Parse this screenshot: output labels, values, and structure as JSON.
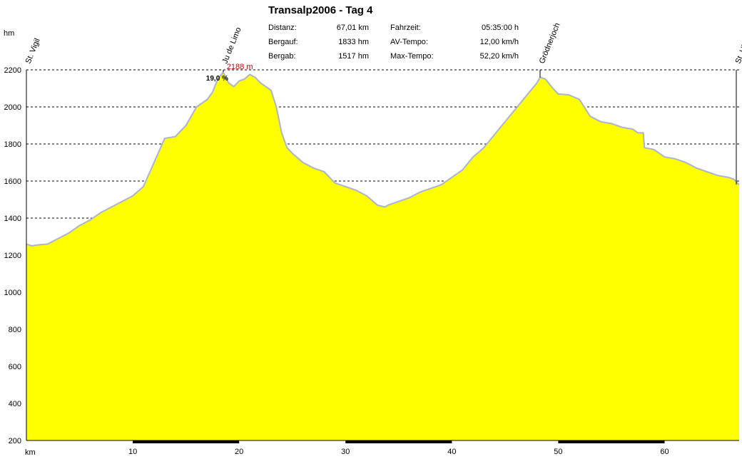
{
  "title": "Transalp2006 - Tag 4",
  "stats": [
    {
      "label": "Distanz:",
      "value": "67,01 km"
    },
    {
      "label": "Bergauf:",
      "value": "1833 hm"
    },
    {
      "label": "Bergab:",
      "value": "1517 hm"
    },
    {
      "label": "Fahrzeit:",
      "value": "05:35:00 h"
    },
    {
      "label": "AV-Tempo:",
      "value": "12,00 km/h"
    },
    {
      "label": "Max-Tempo:",
      "value": "52,20 km/h"
    }
  ],
  "colors": {
    "fill": "#ffff00",
    "line": "#aab4d0",
    "grid": "#000000",
    "maxlabel": "#cc0000"
  },
  "chart_data": {
    "type": "area",
    "xunit": "km",
    "yunit": "hm",
    "xlim": [
      0,
      67.01
    ],
    "ylim": [
      200,
      2200
    ],
    "xticks": [
      10,
      20,
      30,
      40,
      50,
      60
    ],
    "yticks": [
      200,
      400,
      600,
      800,
      1000,
      1200,
      1400,
      1600,
      1800,
      2000,
      2200
    ],
    "grid": true,
    "x": [
      0,
      0.5,
      1,
      2,
      3,
      4,
      5,
      6,
      7,
      8,
      9,
      10,
      11,
      12,
      13,
      14,
      15,
      16,
      17,
      17.5,
      18,
      18.5,
      19,
      19.5,
      20,
      20.5,
      21,
      21.5,
      22,
      22.5,
      23,
      23.5,
      24,
      24.5,
      25,
      26,
      27,
      28,
      29,
      30,
      31,
      32,
      33,
      33.7,
      34,
      35,
      36,
      37,
      38,
      39,
      40,
      41,
      42,
      43,
      44,
      45,
      46,
      47,
      48,
      48.3,
      48.8,
      49.5,
      50,
      51,
      52,
      53,
      54,
      55,
      56,
      57,
      57.5,
      58,
      58.1,
      59,
      60,
      61,
      62,
      63,
      64,
      65,
      66,
      66.5,
      67.01
    ],
    "y": [
      1260,
      1250,
      1255,
      1260,
      1290,
      1320,
      1360,
      1390,
      1430,
      1460,
      1490,
      1520,
      1570,
      1700,
      1830,
      1840,
      1900,
      2000,
      2040,
      2080,
      2150,
      2188,
      2130,
      2110,
      2140,
      2150,
      2175,
      2160,
      2130,
      2110,
      2090,
      2000,
      1860,
      1780,
      1750,
      1700,
      1670,
      1650,
      1590,
      1570,
      1550,
      1520,
      1470,
      1460,
      1470,
      1490,
      1510,
      1540,
      1560,
      1580,
      1620,
      1660,
      1730,
      1780,
      1850,
      1920,
      1990,
      2060,
      2130,
      2160,
      2150,
      2100,
      2070,
      2065,
      2040,
      1950,
      1920,
      1910,
      1890,
      1880,
      1860,
      1860,
      1780,
      1770,
      1730,
      1720,
      1700,
      1670,
      1650,
      1630,
      1620,
      1610,
      1580
    ],
    "waypoints": [
      {
        "name": "St. Vigil",
        "km": 0
      },
      {
        "name": "Ju de Limo",
        "km": 18.5
      },
      {
        "name": "Grödnerjoch",
        "km": 48.3
      },
      {
        "name": "St. Ulrich",
        "km": 67.01
      }
    ],
    "max_label": "2188 m",
    "max_point": {
      "km": 18.5,
      "hm": 2188
    },
    "grade_label": "19,0 %"
  }
}
